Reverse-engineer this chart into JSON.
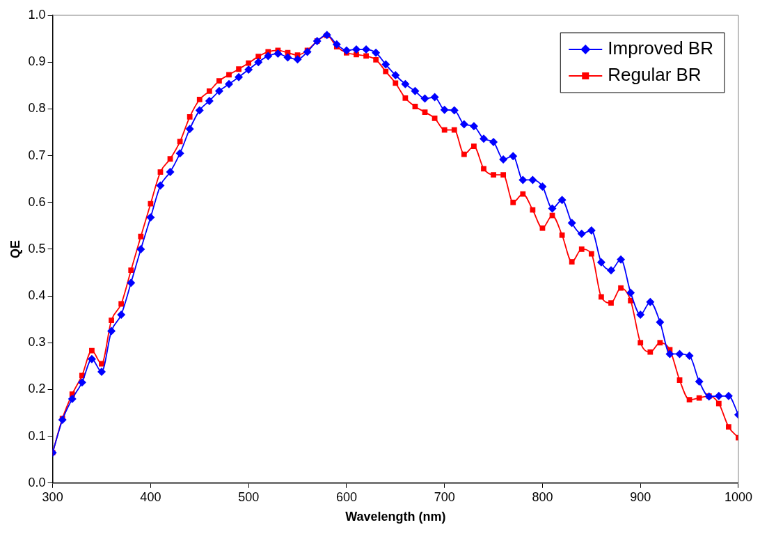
{
  "chart_data": {
    "type": "line",
    "xlabel": "Wavelength (nm)",
    "ylabel": "QE",
    "x": [
      300,
      310,
      320,
      330,
      340,
      350,
      360,
      370,
      380,
      390,
      400,
      410,
      420,
      430,
      440,
      450,
      460,
      470,
      480,
      490,
      500,
      510,
      520,
      530,
      540,
      550,
      560,
      570,
      580,
      590,
      600,
      610,
      620,
      630,
      640,
      650,
      660,
      670,
      680,
      690,
      700,
      710,
      720,
      730,
      740,
      750,
      760,
      770,
      780,
      790,
      800,
      810,
      820,
      830,
      840,
      850,
      860,
      870,
      880,
      890,
      900,
      910,
      920,
      930,
      940,
      950,
      960,
      970,
      980,
      990,
      1000
    ],
    "series": [
      {
        "name": "Improved BR",
        "color": "#0000ff",
        "marker": "diamond",
        "values": [
          0.065,
          0.135,
          0.18,
          0.215,
          0.265,
          0.238,
          0.325,
          0.36,
          0.428,
          0.5,
          0.568,
          0.636,
          0.665,
          0.705,
          0.757,
          0.797,
          0.817,
          0.838,
          0.853,
          0.868,
          0.884,
          0.9,
          0.913,
          0.918,
          0.91,
          0.906,
          0.922,
          0.945,
          0.958,
          0.938,
          0.925,
          0.927,
          0.927,
          0.92,
          0.895,
          0.872,
          0.853,
          0.838,
          0.822,
          0.825,
          0.798,
          0.797,
          0.767,
          0.763,
          0.736,
          0.729,
          0.692,
          0.699,
          0.648,
          0.648,
          0.634,
          0.587,
          0.605,
          0.556,
          0.533,
          0.54,
          0.472,
          0.455,
          0.478,
          0.407,
          0.36,
          0.387,
          0.344,
          0.276,
          0.276,
          0.272,
          0.217,
          0.185,
          0.186,
          0.186,
          0.146
        ]
      },
      {
        "name": "Regular BR",
        "color": "#ff0000",
        "marker": "square",
        "values": [
          0.065,
          0.138,
          0.19,
          0.23,
          0.283,
          0.255,
          0.348,
          0.383,
          0.455,
          0.527,
          0.597,
          0.665,
          0.693,
          0.73,
          0.783,
          0.82,
          0.838,
          0.86,
          0.873,
          0.885,
          0.898,
          0.912,
          0.922,
          0.925,
          0.92,
          0.915,
          0.925,
          0.945,
          0.957,
          0.933,
          0.92,
          0.916,
          0.913,
          0.905,
          0.88,
          0.855,
          0.823,
          0.805,
          0.793,
          0.78,
          0.755,
          0.755,
          0.703,
          0.72,
          0.672,
          0.659,
          0.659,
          0.6,
          0.618,
          0.584,
          0.545,
          0.572,
          0.53,
          0.473,
          0.5,
          0.49,
          0.398,
          0.385,
          0.417,
          0.39,
          0.3,
          0.28,
          0.3,
          0.285,
          0.22,
          0.178,
          0.182,
          0.186,
          0.17,
          0.12,
          0.097
        ]
      }
    ],
    "xlim": [
      300,
      1000
    ],
    "xticks": [
      300,
      400,
      500,
      600,
      700,
      800,
      900,
      1000
    ],
    "ylim": [
      0,
      1
    ],
    "yticks": [
      {
        "value": 0,
        "label": "0.0"
      },
      {
        "value": 0.1,
        "label": "0.1"
      },
      {
        "value": 0.2,
        "label": "0.2"
      },
      {
        "value": 0.3,
        "label": "0.3"
      },
      {
        "value": 0.4,
        "label": "0.4"
      },
      {
        "value": 0.5,
        "label": "0.5"
      },
      {
        "value": 0.6,
        "label": "0.6"
      },
      {
        "value": 0.7,
        "label": "0.7"
      },
      {
        "value": 0.8,
        "label": "0.8"
      },
      {
        "value": 0.9,
        "label": "0.9"
      },
      {
        "value": 1,
        "label": "1.0"
      }
    ],
    "grid": false,
    "legend": "top right"
  }
}
